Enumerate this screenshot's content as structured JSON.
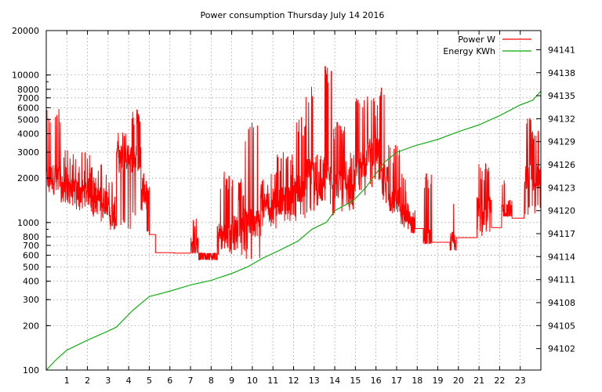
{
  "chart_data": {
    "type": "line",
    "title": "Power consumption Thursday July 14 2016",
    "x_ticks": [
      1,
      2,
      3,
      4,
      5,
      6,
      7,
      8,
      9,
      10,
      11,
      12,
      13,
      14,
      15,
      16,
      17,
      18,
      19,
      20,
      21,
      22,
      23
    ],
    "xlim": [
      0,
      24
    ],
    "y_left": {
      "scale": "log",
      "range": [
        100,
        20000
      ],
      "ticks": [
        100,
        200,
        300,
        400,
        500,
        600,
        700,
        800,
        1000,
        2000,
        3000,
        4000,
        5000,
        6000,
        7000,
        8000,
        10000,
        20000
      ]
    },
    "y_right": {
      "range": [
        94099.2,
        94143.5
      ],
      "ticks": [
        94102,
        94105,
        94108,
        94111,
        94114,
        94117,
        94120,
        94123,
        94126,
        94129,
        94132,
        94135,
        94138,
        94141
      ]
    },
    "legend": {
      "position": "top-right"
    },
    "series": [
      {
        "name": "Power W",
        "axis": "left",
        "color": "#ff0000",
        "segments": [
          {
            "start": 0.0,
            "end": 0.7,
            "low": 1500,
            "high": 6000,
            "base": 2000
          },
          {
            "start": 0.7,
            "end": 1.2,
            "low": 1300,
            "high": 3200,
            "base": 1700
          },
          {
            "start": 1.2,
            "end": 2.2,
            "low": 1200,
            "high": 3000,
            "base": 1600
          },
          {
            "start": 2.2,
            "end": 3.0,
            "low": 1000,
            "high": 2600,
            "base": 1400
          },
          {
            "start": 3.0,
            "end": 3.4,
            "low": 850,
            "high": 2000,
            "base": 1100
          },
          {
            "start": 3.4,
            "end": 4.1,
            "low": 900,
            "high": 4500,
            "base": 2700
          },
          {
            "start": 4.1,
            "end": 4.6,
            "low": 1000,
            "high": 6000,
            "base": 2700
          },
          {
            "start": 4.6,
            "end": 5.0,
            "low": 780,
            "high": 2300,
            "base": 1500
          },
          {
            "start": 5.0,
            "end": 5.3,
            "low": 820,
            "high": 840,
            "base": 830
          },
          {
            "start": 5.3,
            "end": 6.2,
            "low": 620,
            "high": 630,
            "base": 625
          },
          {
            "start": 6.2,
            "end": 7.0,
            "low": 610,
            "high": 630,
            "base": 620
          },
          {
            "start": 7.0,
            "end": 7.4,
            "low": 620,
            "high": 1100,
            "base": 640
          },
          {
            "start": 7.4,
            "end": 8.3,
            "low": 560,
            "high": 620,
            "base": 580
          },
          {
            "start": 8.3,
            "end": 9.0,
            "low": 580,
            "high": 2300,
            "base": 800
          },
          {
            "start": 9.0,
            "end": 9.6,
            "low": 600,
            "high": 2000,
            "base": 900
          },
          {
            "start": 9.6,
            "end": 10.4,
            "low": 550,
            "high": 5000,
            "base": 1000
          },
          {
            "start": 10.4,
            "end": 11.2,
            "low": 900,
            "high": 2300,
            "base": 1300
          },
          {
            "start": 11.2,
            "end": 12.0,
            "low": 1000,
            "high": 3000,
            "base": 1400
          },
          {
            "start": 12.0,
            "end": 12.6,
            "low": 1000,
            "high": 5200,
            "base": 1700
          },
          {
            "start": 12.6,
            "end": 13.0,
            "low": 1100,
            "high": 9000,
            "base": 2200
          },
          {
            "start": 13.0,
            "end": 13.5,
            "low": 1300,
            "high": 3000,
            "base": 1600
          },
          {
            "start": 13.5,
            "end": 13.9,
            "low": 1200,
            "high": 12000,
            "base": 2000
          },
          {
            "start": 13.9,
            "end": 14.5,
            "low": 1100,
            "high": 5000,
            "base": 1800
          },
          {
            "start": 14.5,
            "end": 15.0,
            "low": 1200,
            "high": 3000,
            "base": 1500
          },
          {
            "start": 15.0,
            "end": 15.6,
            "low": 1500,
            "high": 7200,
            "base": 2500
          },
          {
            "start": 15.6,
            "end": 16.2,
            "low": 1700,
            "high": 7200,
            "base": 3000
          },
          {
            "start": 16.2,
            "end": 16.6,
            "low": 1300,
            "high": 9000,
            "base": 2000
          },
          {
            "start": 16.6,
            "end": 17.2,
            "low": 1000,
            "high": 3500,
            "base": 1400
          },
          {
            "start": 17.2,
            "end": 17.6,
            "low": 900,
            "high": 2200,
            "base": 1100
          },
          {
            "start": 17.6,
            "end": 17.9,
            "low": 850,
            "high": 1300,
            "base": 950
          },
          {
            "start": 17.9,
            "end": 18.3,
            "low": 900,
            "high": 920,
            "base": 910
          },
          {
            "start": 18.3,
            "end": 18.7,
            "low": 720,
            "high": 2200,
            "base": 730
          },
          {
            "start": 18.7,
            "end": 19.6,
            "low": 730,
            "high": 740,
            "base": 735
          },
          {
            "start": 19.6,
            "end": 19.9,
            "low": 650,
            "high": 1600,
            "base": 700
          },
          {
            "start": 19.9,
            "end": 20.9,
            "low": 780,
            "high": 800,
            "base": 790
          },
          {
            "start": 20.9,
            "end": 21.6,
            "low": 800,
            "high": 2700,
            "base": 1200
          },
          {
            "start": 21.6,
            "end": 22.1,
            "low": 920,
            "high": 930,
            "base": 925
          },
          {
            "start": 22.1,
            "end": 22.6,
            "low": 1100,
            "high": 2000,
            "base": 1150
          },
          {
            "start": 22.6,
            "end": 23.2,
            "low": 1050,
            "high": 1100,
            "base": 1070
          },
          {
            "start": 23.2,
            "end": 24.0,
            "low": 1100,
            "high": 5200,
            "base": 2000
          }
        ]
      },
      {
        "name": "Energy KWh",
        "axis": "right",
        "color": "#00aa00",
        "points": [
          [
            0,
            94099.2
          ],
          [
            0.5,
            94100.6
          ],
          [
            1,
            94101.8
          ],
          [
            2,
            94103.1
          ],
          [
            3,
            94104.3
          ],
          [
            3.4,
            94104.8
          ],
          [
            4.2,
            94107
          ],
          [
            5,
            94108.8
          ],
          [
            6,
            94109.5
          ],
          [
            7,
            94110.3
          ],
          [
            8,
            94110.9
          ],
          [
            9,
            94111.8
          ],
          [
            9.8,
            94112.7
          ],
          [
            10.5,
            94113.8
          ],
          [
            11.3,
            94114.8
          ],
          [
            12.2,
            94116
          ],
          [
            12.9,
            94117.6
          ],
          [
            13.6,
            94118.5
          ],
          [
            14,
            94120
          ],
          [
            14.9,
            94121.3
          ],
          [
            15.5,
            94123
          ],
          [
            16.4,
            94126.3
          ],
          [
            17,
            94127.6
          ],
          [
            17.8,
            94128.4
          ],
          [
            19,
            94129.3
          ],
          [
            20,
            94130.3
          ],
          [
            21,
            94131.2
          ],
          [
            22,
            94132.4
          ],
          [
            23,
            94133.8
          ],
          [
            23.6,
            94134.4
          ],
          [
            24,
            94135.6
          ]
        ]
      }
    ]
  }
}
